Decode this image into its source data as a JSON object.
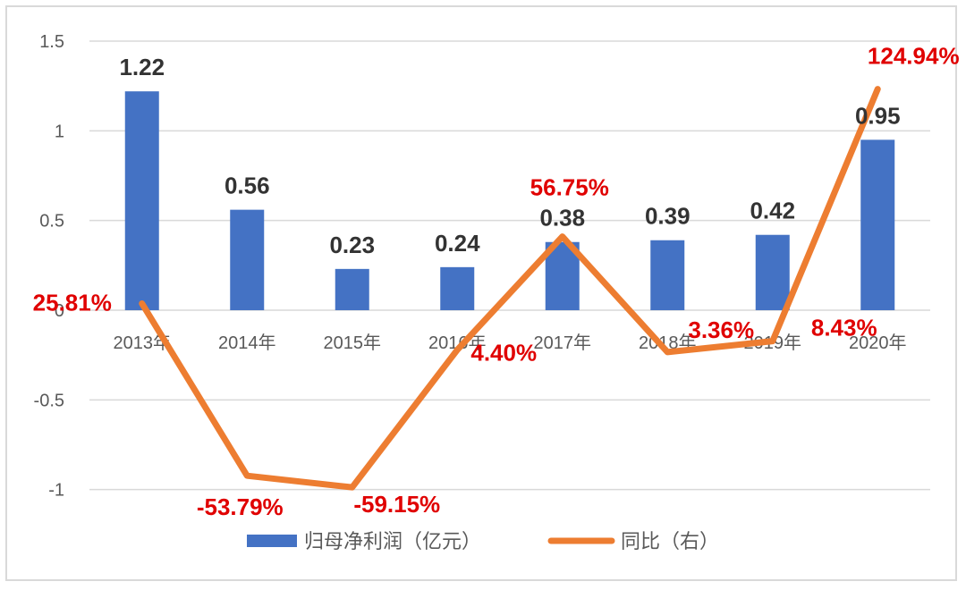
{
  "chart_data": {
    "type": "bar",
    "categories": [
      "2013年",
      "2014年",
      "2015年",
      "2016年",
      "2017年",
      "2018年",
      "2019年",
      "2020年"
    ],
    "ylim": [
      -1,
      1.5
    ],
    "yticks": [
      "1.5",
      "1",
      "0.5",
      "0",
      "-0.5",
      "-1"
    ],
    "grid": true,
    "legend_position": "bottom",
    "series": [
      {
        "name": "归母净利润（亿元）",
        "type": "bar",
        "color": "#4472c4",
        "values": [
          1.22,
          0.56,
          0.23,
          0.24,
          0.38,
          0.39,
          0.42,
          0.95
        ],
        "labels": [
          "1.22",
          "0.56",
          "0.23",
          "0.24",
          "0.38",
          "0.39",
          "0.42",
          "0.95"
        ]
      },
      {
        "name": "同比（右）",
        "type": "line",
        "color": "#ed7d31",
        "values": [
          25.81,
          -53.79,
          -59.15,
          4.4,
          56.75,
          3.36,
          8.43,
          124.94
        ],
        "labels": [
          "25.81%",
          "-53.79%",
          "-59.15%",
          "4.40%",
          "56.75%",
          "3.36%",
          "8.43%",
          "124.94%"
        ],
        "label_color": "#e00000"
      }
    ]
  }
}
